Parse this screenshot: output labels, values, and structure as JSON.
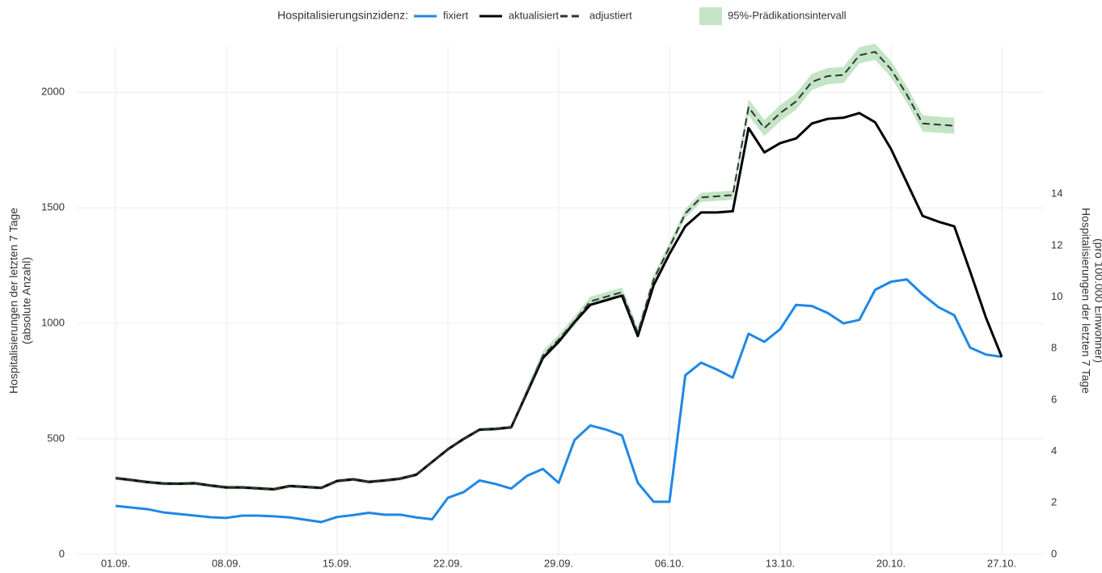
{
  "chart_data": {
    "type": "line",
    "legend_title": "Hospitalisierungsinzidenz:",
    "y_label": [
      "Hospitalisierungen der letzten 7 Tage",
      "(absolute Anzahl)"
    ],
    "y2_label": [
      "Hospitalisierungen der letzten 7 Tage",
      "(pro 100.000 Einwohner)"
    ],
    "categories": [
      "01.09.",
      null,
      null,
      null,
      null,
      null,
      null,
      "08.09.",
      null,
      null,
      null,
      null,
      null,
      null,
      "15.09.",
      null,
      null,
      null,
      null,
      null,
      null,
      "22.09.",
      null,
      null,
      null,
      null,
      null,
      null,
      "29.09.",
      null,
      null,
      null,
      null,
      null,
      null,
      "06.10.",
      null,
      null,
      null,
      null,
      null,
      null,
      "13.10.",
      null,
      null,
      null,
      null,
      null,
      null,
      "20.10.",
      null,
      null,
      null,
      null,
      null,
      null,
      "27.10."
    ],
    "ylim": [
      0,
      2200
    ],
    "yticks": [
      0,
      500,
      1000,
      1500,
      2000
    ],
    "y2lim": [
      0,
      19.75
    ],
    "y2ticks": [
      0,
      2,
      4,
      6,
      8,
      10,
      12,
      14
    ],
    "grid": true,
    "legend": "top",
    "series": [
      {
        "name": "fixiert",
        "color": "#1e88e5",
        "dashed": false,
        "values": [
          210,
          203,
          196,
          182,
          175,
          168,
          161,
          158,
          168,
          168,
          165,
          160,
          150,
          140,
          162,
          170,
          180,
          172,
          172,
          160,
          152,
          245,
          270,
          320,
          305,
          285,
          340,
          370,
          310,
          495,
          558,
          540,
          515,
          310,
          228,
          228,
          775,
          830,
          800,
          765,
          955,
          920,
          975,
          1080,
          1075,
          1045,
          1000,
          1015,
          1145,
          1180,
          1190,
          1125,
          1070,
          1035,
          895,
          865,
          855
        ]
      },
      {
        "name": "aktualisiert",
        "color": "#000000",
        "dashed": false,
        "values": [
          330,
          322,
          313,
          307,
          306,
          308,
          298,
          290,
          290,
          286,
          282,
          296,
          292,
          288,
          318,
          325,
          314,
          320,
          328,
          345,
          400,
          455,
          500,
          540,
          543,
          550,
          700,
          850,
          920,
          1005,
          1080,
          1100,
          1120,
          945,
          1165,
          1300,
          1420,
          1480,
          1480,
          1485,
          1845,
          1740,
          1780,
          1800,
          1865,
          1885,
          1890,
          1910,
          1870,
          1755,
          1610,
          1465,
          1440,
          1420,
          1225,
          1025,
          855
        ]
      },
      {
        "name": "adjustiert",
        "color": "#333333",
        "dashed": true,
        "values": [
          330,
          322,
          313,
          307,
          306,
          308,
          298,
          290,
          290,
          286,
          282,
          296,
          292,
          288,
          318,
          325,
          314,
          320,
          328,
          345,
          400,
          455,
          500,
          540,
          543,
          550,
          705,
          860,
          930,
          1010,
          1095,
          1115,
          1135,
          960,
          1190,
          1330,
          1475,
          1545,
          1550,
          1555,
          1935,
          1845,
          1910,
          1960,
          2045,
          2070,
          2075,
          2160,
          2175,
          2100,
          1990,
          1865,
          1860,
          1855,
          null,
          null,
          null
        ]
      }
    ],
    "band": {
      "name": "95%-Prädikationsintervall",
      "color": "#a5d6a7",
      "lower": [
        322,
        314,
        305,
        299,
        298,
        300,
        290,
        282,
        282,
        278,
        274,
        288,
        284,
        280,
        310,
        317,
        306,
        312,
        320,
        337,
        392,
        447,
        492,
        532,
        535,
        542,
        685,
        840,
        910,
        990,
        1075,
        1095,
        1115,
        940,
        1170,
        1310,
        1455,
        1525,
        1530,
        1535,
        1900,
        1810,
        1875,
        1925,
        2010,
        2035,
        2040,
        2125,
        2140,
        2065,
        1955,
        1830,
        1825,
        1820,
        null,
        null,
        null
      ],
      "upper": [
        338,
        330,
        321,
        315,
        314,
        316,
        306,
        298,
        298,
        294,
        290,
        304,
        300,
        296,
        326,
        333,
        322,
        328,
        336,
        353,
        408,
        463,
        508,
        548,
        551,
        558,
        725,
        880,
        950,
        1030,
        1115,
        1135,
        1155,
        980,
        1210,
        1350,
        1495,
        1565,
        1570,
        1575,
        1970,
        1880,
        1945,
        1995,
        2080,
        2105,
        2110,
        2195,
        2210,
        2135,
        2025,
        1900,
        1895,
        1890,
        null,
        null,
        null
      ]
    }
  }
}
